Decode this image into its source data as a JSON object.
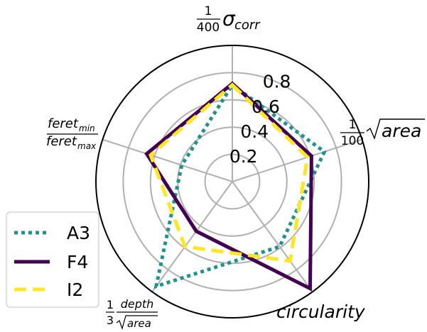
{
  "chart_data": {
    "type": "radar",
    "axes": [
      {
        "key": "sigma",
        "label": "1/400 σ_corr"
      },
      {
        "key": "area",
        "label": "1/100 √area"
      },
      {
        "key": "circularity",
        "label": "circularity"
      },
      {
        "key": "depth",
        "label": "1/3 depth/√area"
      },
      {
        "key": "feret",
        "label": "feret_min/feret_max"
      }
    ],
    "r_ticks": [
      "0.2",
      "0.4",
      "0.6",
      "0.8"
    ],
    "r_tick_values": [
      0.2,
      0.4,
      0.6,
      0.8
    ],
    "rlim": [
      0,
      1.0
    ],
    "grid": true,
    "legend_position": "lower-left",
    "series": [
      {
        "name": "A3",
        "color": "#21918c",
        "style": "dotted",
        "values": [
          0.71,
          0.71,
          0.59,
          0.95,
          0.39
        ]
      },
      {
        "name": "F4",
        "color": "#440154",
        "style": "solid",
        "values": [
          0.72,
          0.61,
          0.97,
          0.45,
          0.66
        ]
      },
      {
        "name": "I2",
        "color": "#fde725",
        "style": "dashed",
        "values": [
          0.71,
          0.58,
          0.72,
          0.59,
          0.63
        ]
      }
    ]
  }
}
